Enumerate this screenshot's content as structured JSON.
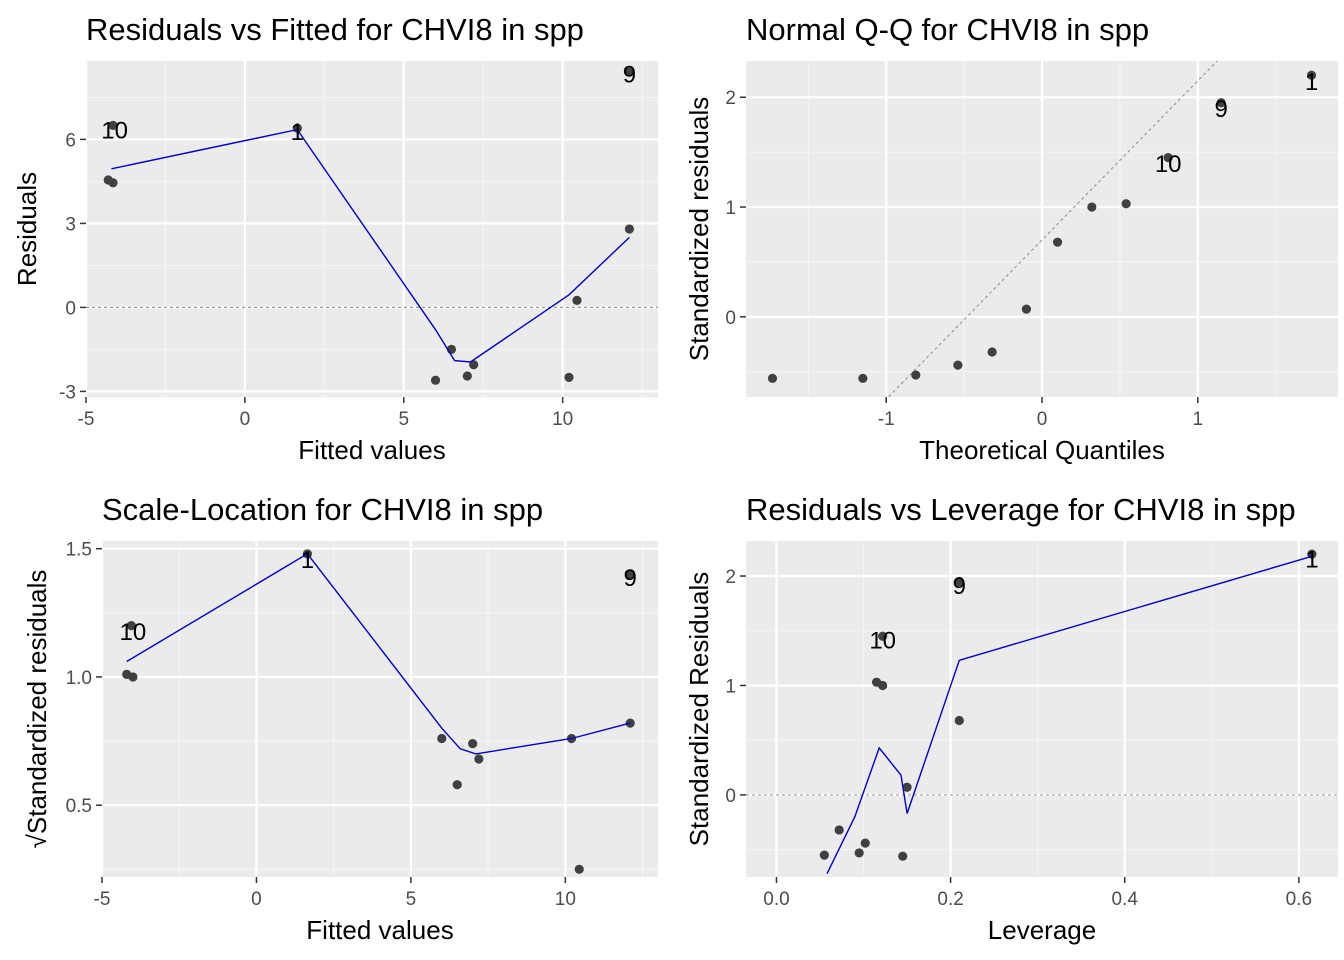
{
  "colors": {
    "panel_background": "#ebebeb",
    "grid_major": "#ffffff",
    "grid_minor": "#f5f5f5",
    "point": "#404040",
    "smooth_line": "#0000cc",
    "reference_line": "#999999",
    "tick_text": "#4d4d4d"
  },
  "chart_data": [
    {
      "id": "residuals-vs-fitted",
      "type": "scatter",
      "title": "Residuals vs Fitted for CHVI8 in spp",
      "xlabel": "Fitted values",
      "ylabel": "Residuals",
      "xlim": [
        -5,
        13
      ],
      "ylim": [
        -3.2,
        8.8
      ],
      "xticks": [
        -5,
        0,
        5,
        10
      ],
      "yticks": [
        -3,
        0,
        3,
        6
      ],
      "xtick_labels": [
        "-5",
        "0",
        "5",
        "10"
      ],
      "ytick_labels": [
        "-3",
        "0",
        "3",
        "6"
      ],
      "grid": true,
      "hline": 0,
      "points": [
        {
          "x": -4.3,
          "y": 4.55
        },
        {
          "x": -4.15,
          "y": 4.45
        },
        {
          "x": -4.15,
          "y": 6.5
        },
        {
          "x": 1.65,
          "y": 6.4
        },
        {
          "x": 6.0,
          "y": -2.6
        },
        {
          "x": 6.5,
          "y": -1.5
        },
        {
          "x": 7.0,
          "y": -2.45
        },
        {
          "x": 7.2,
          "y": -2.05
        },
        {
          "x": 10.2,
          "y": -2.5
        },
        {
          "x": 10.45,
          "y": 0.25
        },
        {
          "x": 12.1,
          "y": 2.8
        },
        {
          "x": 12.1,
          "y": 8.4
        }
      ],
      "smooth": [
        {
          "x": -4.2,
          "y": 4.95
        },
        {
          "x": 1.65,
          "y": 6.35
        },
        {
          "x": 6.0,
          "y": -0.8
        },
        {
          "x": 6.6,
          "y": -1.9
        },
        {
          "x": 7.1,
          "y": -1.95
        },
        {
          "x": 10.2,
          "y": 0.45
        },
        {
          "x": 12.1,
          "y": 2.5
        }
      ],
      "point_labels": [
        {
          "text": "10",
          "x": -4.1,
          "y": 6.35
        },
        {
          "text": "1",
          "x": 1.65,
          "y": 6.3
        },
        {
          "text": "9",
          "x": 12.1,
          "y": 8.35
        }
      ]
    },
    {
      "id": "normal-qq",
      "type": "scatter",
      "title": "Normal Q-Q for CHVI8 in spp",
      "xlabel": "Theoretical Quantiles",
      "ylabel": "Standardized residuals",
      "xlim": [
        -1.9,
        1.9
      ],
      "ylim": [
        -0.73,
        2.33
      ],
      "xticks": [
        -1,
        0,
        1
      ],
      "yticks": [
        0,
        1,
        2
      ],
      "xtick_labels": [
        "-1",
        "0",
        "1"
      ],
      "ytick_labels": [
        "0",
        "1",
        "2"
      ],
      "grid": true,
      "ref_line": {
        "intercept": 0.7,
        "slope": 1.45
      },
      "points": [
        {
          "x": -1.73,
          "y": -0.56
        },
        {
          "x": -1.15,
          "y": -0.56
        },
        {
          "x": -0.81,
          "y": -0.53
        },
        {
          "x": -0.54,
          "y": -0.44
        },
        {
          "x": -0.32,
          "y": -0.32
        },
        {
          "x": -0.1,
          "y": 0.07
        },
        {
          "x": 0.1,
          "y": 0.68
        },
        {
          "x": 0.32,
          "y": 1.0
        },
        {
          "x": 0.54,
          "y": 1.03
        },
        {
          "x": 0.81,
          "y": 1.45
        },
        {
          "x": 1.15,
          "y": 1.95
        },
        {
          "x": 1.73,
          "y": 2.2
        }
      ],
      "point_labels": [
        {
          "text": "10",
          "x": 0.81,
          "y": 1.4
        },
        {
          "text": "9",
          "x": 1.15,
          "y": 1.9
        },
        {
          "text": "1",
          "x": 1.73,
          "y": 2.15
        }
      ]
    },
    {
      "id": "scale-location",
      "type": "scatter",
      "title": "Scale-Location for CHVI8 in spp",
      "xlabel": "Fitted values",
      "ylabel": "√Standardized residuals",
      "xlim": [
        -5,
        13
      ],
      "ylim": [
        0.22,
        1.53
      ],
      "xticks": [
        -5,
        0,
        5,
        10
      ],
      "yticks": [
        0.5,
        1.0,
        1.5
      ],
      "xtick_labels": [
        "-5",
        "0",
        "5",
        "10"
      ],
      "ytick_labels": [
        "0.5",
        "1.0",
        "1.5"
      ],
      "grid": true,
      "points": [
        {
          "x": -4.2,
          "y": 1.01
        },
        {
          "x": -4.0,
          "y": 1.0
        },
        {
          "x": -4.05,
          "y": 1.2
        },
        {
          "x": 1.65,
          "y": 1.48
        },
        {
          "x": 6.0,
          "y": 0.76
        },
        {
          "x": 6.5,
          "y": 0.58
        },
        {
          "x": 7.0,
          "y": 0.74
        },
        {
          "x": 7.2,
          "y": 0.68
        },
        {
          "x": 10.2,
          "y": 0.76
        },
        {
          "x": 10.45,
          "y": 0.25
        },
        {
          "x": 12.1,
          "y": 0.82
        },
        {
          "x": 12.1,
          "y": 1.4
        }
      ],
      "smooth": [
        {
          "x": -4.2,
          "y": 1.06
        },
        {
          "x": 1.65,
          "y": 1.48
        },
        {
          "x": 6.0,
          "y": 0.8
        },
        {
          "x": 6.6,
          "y": 0.72
        },
        {
          "x": 7.1,
          "y": 0.7
        },
        {
          "x": 10.2,
          "y": 0.76
        },
        {
          "x": 12.1,
          "y": 0.82
        }
      ],
      "point_labels": [
        {
          "text": "10",
          "x": -4.0,
          "y": 1.18
        },
        {
          "text": "1",
          "x": 1.65,
          "y": 1.46
        },
        {
          "text": "9",
          "x": 12.1,
          "y": 1.39
        }
      ]
    },
    {
      "id": "residuals-vs-leverage",
      "type": "scatter",
      "title": "Residuals vs Leverage for CHVI8 in spp",
      "xlabel": "Leverage",
      "ylabel": "Standardized Residuals",
      "xlim": [
        -0.035,
        0.645
      ],
      "ylim": [
        -0.75,
        2.32
      ],
      "xticks": [
        0.0,
        0.2,
        0.4,
        0.6
      ],
      "yticks": [
        0,
        1,
        2
      ],
      "xtick_labels": [
        "0.0",
        "0.2",
        "0.4",
        "0.6"
      ],
      "ytick_labels": [
        "0",
        "1",
        "2"
      ],
      "grid": true,
      "hline": 0,
      "points": [
        {
          "x": 0.055,
          "y": -0.55
        },
        {
          "x": 0.072,
          "y": -0.32
        },
        {
          "x": 0.095,
          "y": -0.53
        },
        {
          "x": 0.102,
          "y": -0.44
        },
        {
          "x": 0.115,
          "y": 1.03
        },
        {
          "x": 0.122,
          "y": 1.0
        },
        {
          "x": 0.122,
          "y": 1.45
        },
        {
          "x": 0.145,
          "y": -0.56
        },
        {
          "x": 0.15,
          "y": 0.07
        },
        {
          "x": 0.21,
          "y": 0.68
        },
        {
          "x": 0.21,
          "y": 1.95
        },
        {
          "x": 0.615,
          "y": 2.2
        }
      ],
      "smooth": [
        {
          "x": 0.058,
          "y": -0.72
        },
        {
          "x": 0.09,
          "y": -0.2
        },
        {
          "x": 0.118,
          "y": 0.43
        },
        {
          "x": 0.143,
          "y": 0.18
        },
        {
          "x": 0.15,
          "y": -0.17
        },
        {
          "x": 0.21,
          "y": 1.23
        },
        {
          "x": 0.615,
          "y": 2.18
        }
      ],
      "point_labels": [
        {
          "text": "10",
          "x": 0.122,
          "y": 1.42
        },
        {
          "text": "9",
          "x": 0.21,
          "y": 1.92
        },
        {
          "text": "1",
          "x": 0.615,
          "y": 2.16
        }
      ]
    }
  ]
}
